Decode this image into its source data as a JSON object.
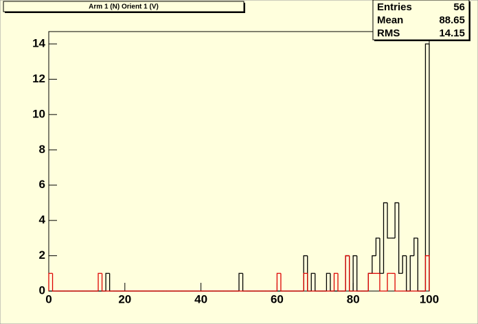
{
  "chart_data": {
    "type": "histogram",
    "title": "Arm 1 (N) Orient 1 (V)",
    "bins": [
      0,
      1,
      2,
      3,
      4,
      5,
      6,
      7,
      8,
      9,
      10,
      11,
      12,
      13,
      14,
      15,
      16,
      17,
      18,
      19,
      20,
      21,
      22,
      23,
      24,
      25,
      26,
      27,
      28,
      29,
      30,
      31,
      32,
      33,
      34,
      35,
      36,
      37,
      38,
      39,
      40,
      41,
      42,
      43,
      44,
      45,
      46,
      47,
      48,
      49,
      50,
      51,
      52,
      53,
      54,
      55,
      56,
      57,
      58,
      59,
      60,
      61,
      62,
      63,
      64,
      65,
      66,
      67,
      68,
      69,
      70,
      71,
      72,
      73,
      74,
      75,
      76,
      77,
      78,
      79,
      80,
      81,
      82,
      83,
      84,
      85,
      86,
      87,
      88,
      89,
      90,
      91,
      92,
      93,
      94,
      95,
      96,
      97,
      98,
      99,
      100
    ],
    "series": [
      {
        "color": "#000000",
        "values": [
          0,
          0,
          0,
          0,
          0,
          0,
          0,
          0,
          0,
          0,
          0,
          0,
          0,
          0,
          0,
          1,
          0,
          0,
          0,
          0,
          0,
          0,
          0,
          0,
          0,
          0,
          0,
          0,
          0,
          0,
          0,
          0,
          0,
          0,
          0,
          0,
          0,
          0,
          0,
          0,
          0,
          0,
          0,
          0,
          0,
          0,
          0,
          0,
          0,
          0,
          1,
          0,
          0,
          0,
          0,
          0,
          0,
          0,
          0,
          0,
          0,
          0,
          0,
          0,
          0,
          0,
          0,
          2,
          0,
          1,
          0,
          0,
          0,
          1,
          0,
          0,
          0,
          0,
          2,
          0,
          2,
          0,
          0,
          0,
          1,
          2,
          3,
          1,
          5,
          3,
          3,
          5,
          1,
          2,
          0,
          2,
          3,
          0,
          0,
          14
        ]
      },
      {
        "color": "#dd0000",
        "values": [
          1,
          0,
          0,
          0,
          0,
          0,
          0,
          0,
          0,
          0,
          0,
          0,
          0,
          1,
          0,
          0,
          0,
          0,
          0,
          0,
          0,
          0,
          0,
          0,
          0,
          0,
          0,
          0,
          0,
          0,
          0,
          0,
          0,
          0,
          0,
          0,
          0,
          0,
          0,
          0,
          0,
          0,
          0,
          0,
          0,
          0,
          0,
          0,
          0,
          0,
          0,
          0,
          0,
          0,
          0,
          0,
          0,
          0,
          0,
          0,
          1,
          0,
          0,
          0,
          0,
          0,
          0,
          1,
          0,
          0,
          0,
          0,
          0,
          0,
          0,
          1,
          0,
          0,
          2,
          0,
          0,
          0,
          0,
          0,
          1,
          1,
          1,
          0,
          0,
          1,
          1,
          0,
          0,
          0,
          0,
          0,
          0,
          0,
          0,
          2
        ]
      }
    ],
    "xlim": [
      0,
      100
    ],
    "xticks": [
      0,
      20,
      40,
      60,
      80,
      100
    ],
    "ylim": [
      0,
      14.7
    ],
    "yticks": [
      0,
      2,
      4,
      6,
      8,
      10,
      12,
      14
    ],
    "stats": [
      {
        "label": "Entries",
        "value": "56"
      },
      {
        "label": "Mean",
        "value": "88.65"
      },
      {
        "label": "RMS",
        "value": "14.15"
      }
    ]
  }
}
